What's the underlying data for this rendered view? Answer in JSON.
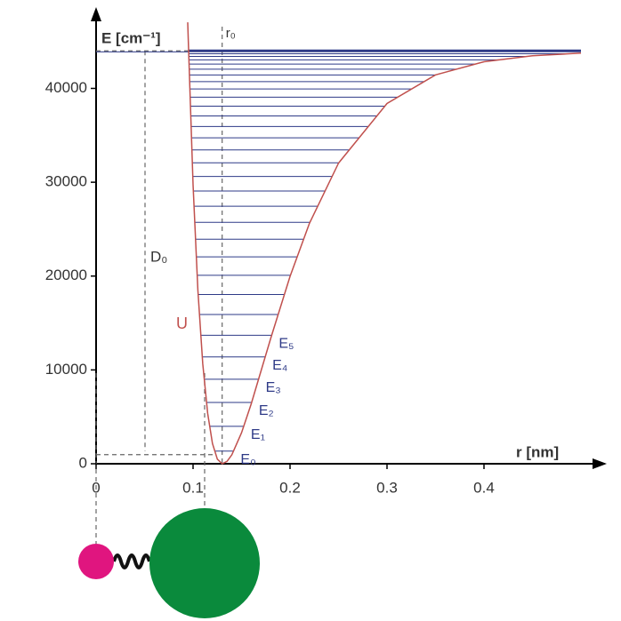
{
  "chart_data": {
    "type": "line",
    "y_label": "E [cm⁻¹]",
    "x_label": "r [nm]",
    "xlim": [
      0,
      0.5
    ],
    "ylim": [
      0,
      48000
    ],
    "xticks": [
      0,
      0.1,
      0.2,
      0.3,
      0.4
    ],
    "yticks": [
      0,
      10000,
      20000,
      30000,
      40000
    ],
    "series": [
      {
        "name": "U",
        "color": "#c0504d",
        "x": [
          0.0945,
          0.095,
          0.1,
          0.105,
          0.11,
          0.115,
          0.12,
          0.125,
          0.13,
          0.135,
          0.14,
          0.15,
          0.16,
          0.18,
          0.2,
          0.22,
          0.25,
          0.3,
          0.35,
          0.4,
          0.45,
          0.5
        ],
        "values": [
          47040,
          45230,
          29740,
          18520,
          10640,
          5390,
          2160,
          490,
          0,
          260,
          960,
          3300,
          6390,
          13340,
          19970,
          25620,
          32040,
          38390,
          41440,
          42840,
          43480,
          43760
        ]
      }
    ],
    "levels": {
      "color": "#2e3a87",
      "values": [
        1350,
        3986,
        6538,
        9006,
        11390,
        13690,
        15906,
        18038,
        20086,
        22050,
        23930,
        25726,
        27438,
        29066,
        30610,
        32070,
        33446,
        34738,
        35946,
        37070,
        38110,
        39066,
        39938,
        40726,
        41430,
        42050,
        42586,
        43038,
        43406,
        43690,
        43890
      ],
      "labels": [
        "E₀",
        "E₁",
        "E₂",
        "E₃",
        "E₄",
        "E₅",
        null,
        null,
        null,
        null,
        null,
        null,
        null,
        null,
        null,
        null,
        null,
        null,
        null,
        null,
        null,
        null,
        null,
        null,
        null,
        null,
        null,
        null,
        null,
        null,
        null
      ]
    },
    "dissociation_energy": 44000,
    "equilibrium_distance": 0.13,
    "annotations": {
      "r0": "r₀",
      "d0": "D₀"
    }
  }
}
